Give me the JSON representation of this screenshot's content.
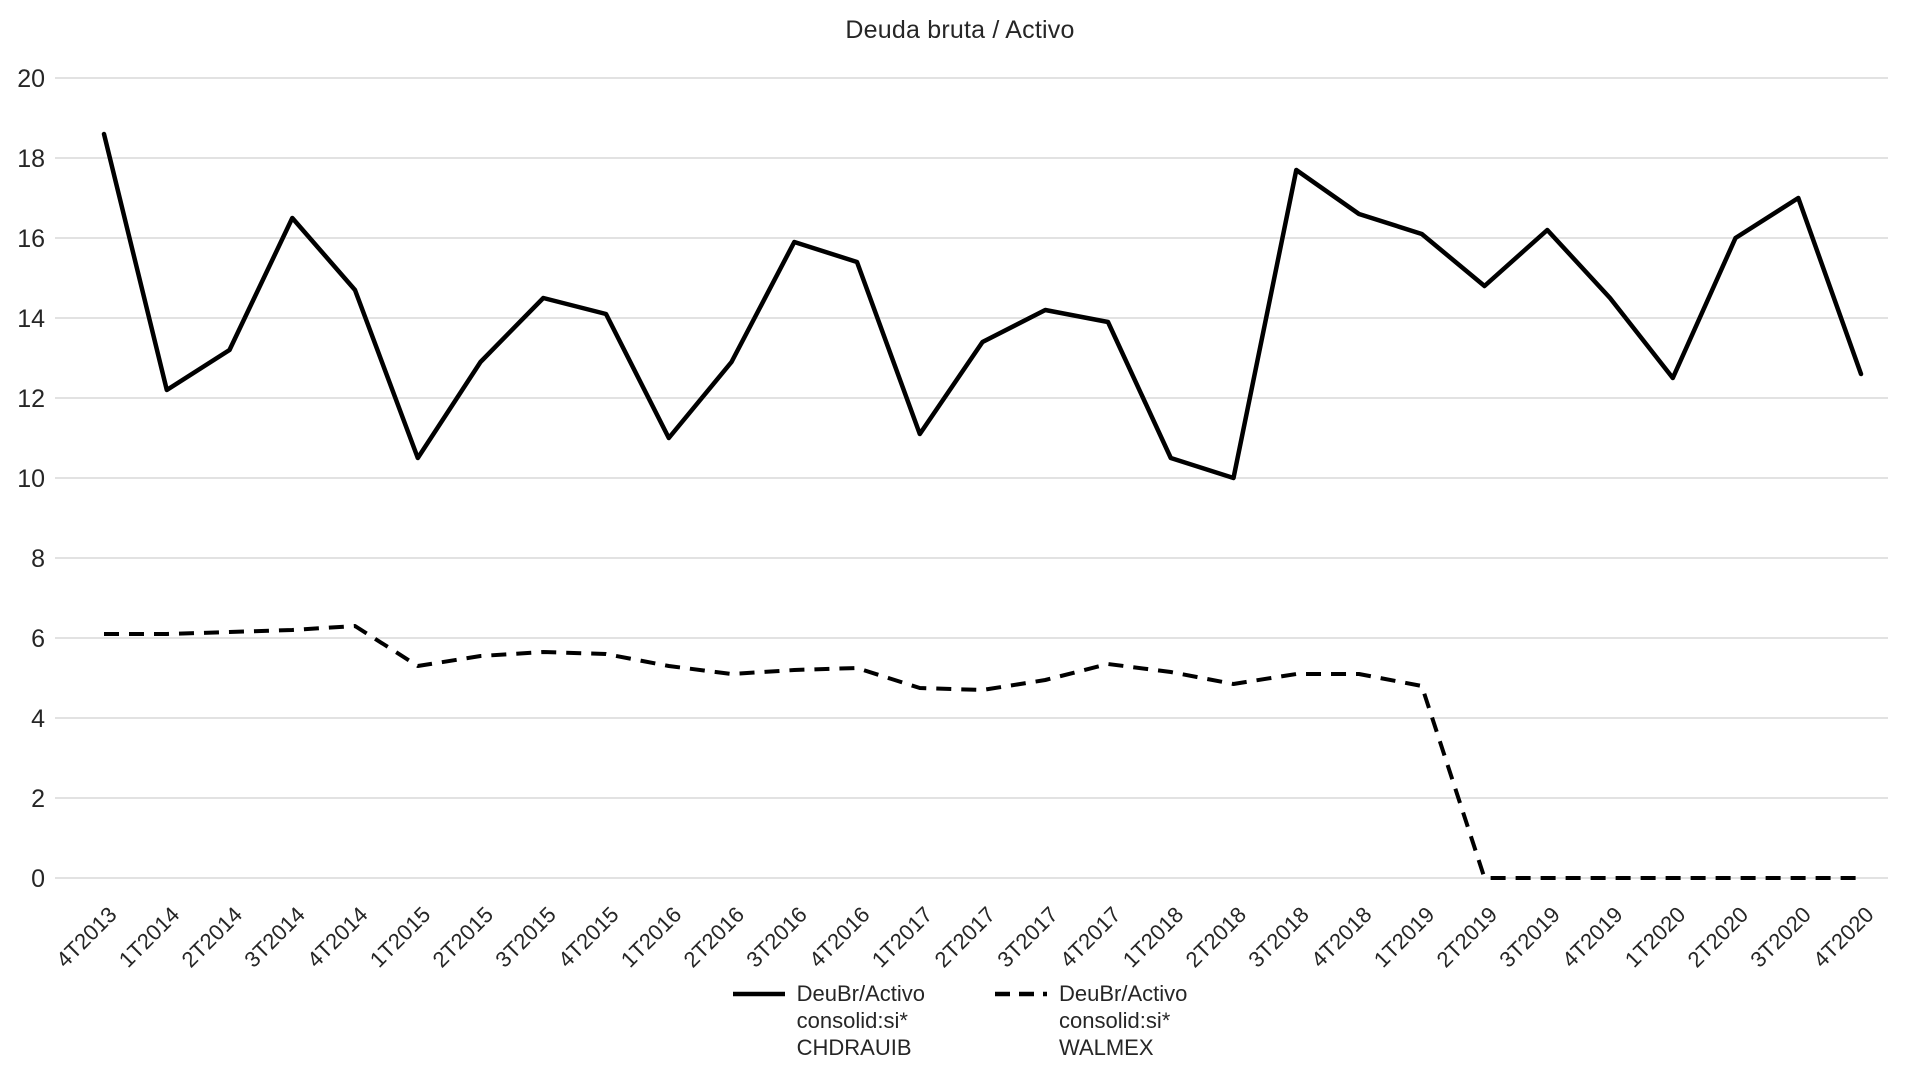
{
  "chart_data": {
    "type": "line",
    "title": "Deuda bruta / Activo",
    "xlabel": "",
    "ylabel": "",
    "ylim": [
      0,
      20
    ],
    "yticks": [
      0,
      2,
      4,
      6,
      8,
      10,
      12,
      14,
      16,
      18,
      20
    ],
    "grid": "horizontal",
    "legend_position": "bottom",
    "categories": [
      "4T2013",
      "1T2014",
      "2T2014",
      "3T2014",
      "4T2014",
      "1T2015",
      "2T2015",
      "3T2015",
      "4T2015",
      "1T2016",
      "2T2016",
      "3T2016",
      "4T2016",
      "1T2017",
      "2T2017",
      "3T2017",
      "4T2017",
      "1T2018",
      "2T2018",
      "3T2018",
      "4T2018",
      "1T2019",
      "2T2019",
      "3T2019",
      "4T2019",
      "1T2020",
      "2T2020",
      "3T2020",
      "4T2020"
    ],
    "series": [
      {
        "name": "DeuBr/Activo consolid:si* CHDRAUIB",
        "style": "solid",
        "values": [
          18.6,
          12.2,
          13.2,
          16.5,
          14.7,
          10.5,
          12.9,
          14.5,
          14.1,
          11.0,
          12.9,
          15.9,
          15.4,
          11.1,
          13.4,
          14.2,
          13.9,
          10.5,
          10.0,
          17.7,
          16.6,
          16.1,
          14.8,
          16.2,
          14.5,
          12.5,
          16.0,
          17.0,
          12.6
        ]
      },
      {
        "name": "DeuBr/Activo consolid:si* WALMEX",
        "style": "dashed",
        "values": [
          6.1,
          6.1,
          6.15,
          6.2,
          6.3,
          5.3,
          5.55,
          5.65,
          5.6,
          5.3,
          5.1,
          5.2,
          5.25,
          4.75,
          4.7,
          4.95,
          5.35,
          5.15,
          4.85,
          5.1,
          5.1,
          4.8,
          0,
          0,
          0,
          0,
          0,
          0,
          0
        ]
      }
    ]
  },
  "legend": {
    "items": [
      {
        "label": "DeuBr/Activo\nconsolid:si*\nCHDRAUIB",
        "style": "solid"
      },
      {
        "label": "DeuBr/Activo\nconsolid:si*\nWALMEX",
        "style": "dashed"
      }
    ]
  },
  "colors": {
    "line": "#000000",
    "gridline": "#d9d9d9",
    "text": "#262626",
    "background": "#ffffff"
  }
}
